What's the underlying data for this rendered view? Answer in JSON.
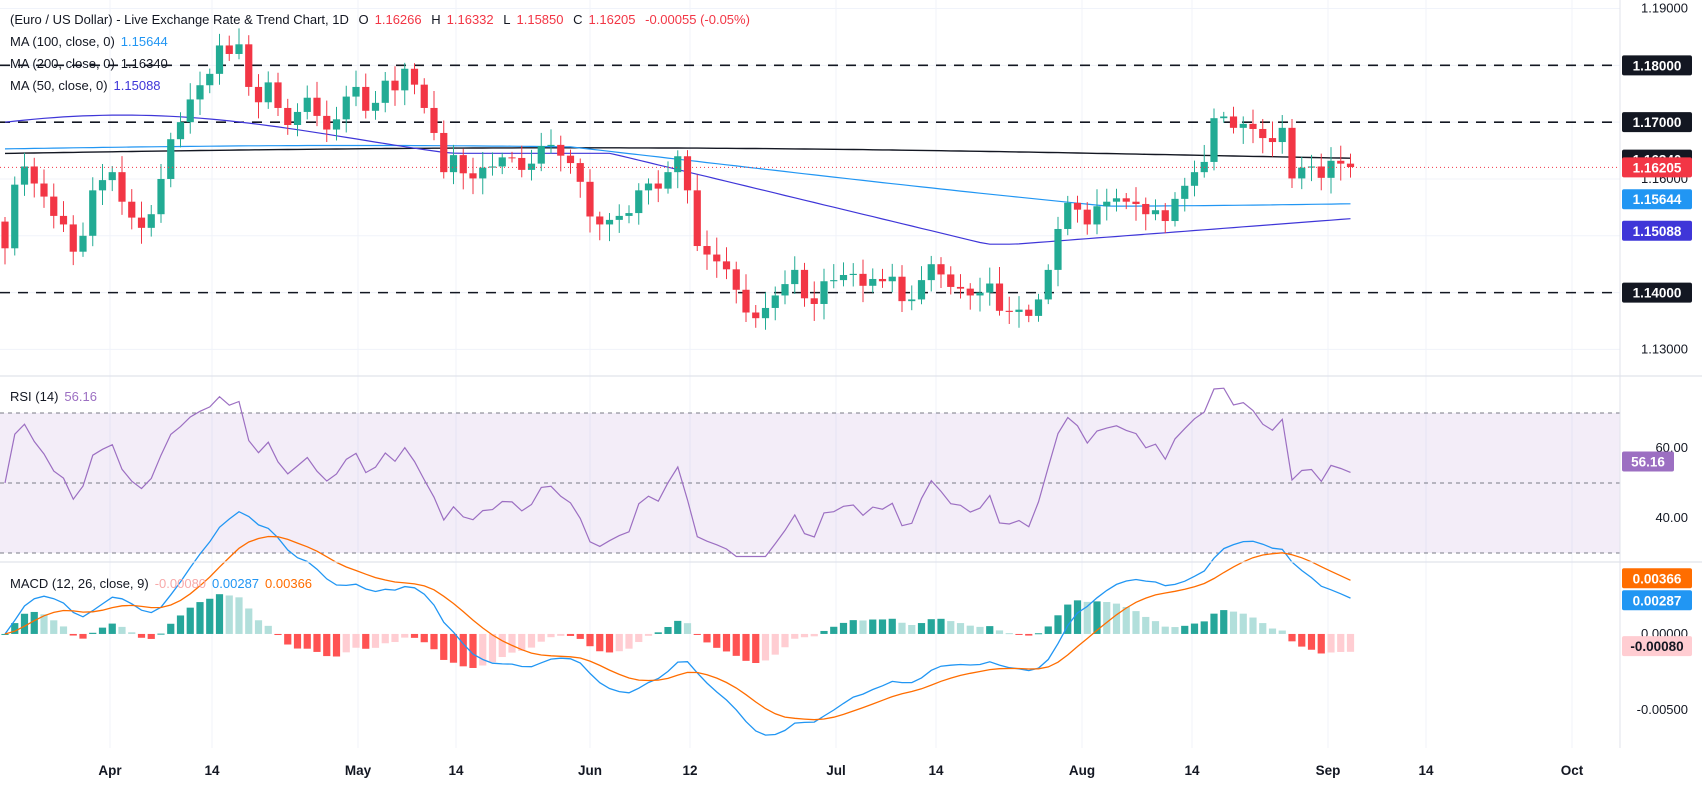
{
  "header": {
    "title": "(Euro / US Dollar) - Live Exchange Rate & Trend Chart, 1D",
    "o_label": "O",
    "o_value": "1.16266",
    "h_label": "H",
    "h_value": "1.16332",
    "l_label": "L",
    "l_value": "1.15850",
    "c_label": "C",
    "c_value": "1.16205",
    "change": "-0.00055 (-0.05%)"
  },
  "indicators": {
    "ma100": {
      "label": "MA (100, close, 0)",
      "value": "1.15644",
      "color": "#2196f3"
    },
    "ma200": {
      "label": "MA (200, close, 0)",
      "value": "1.16340",
      "color": "#131722"
    },
    "ma50": {
      "label": "MA (50, close, 0)",
      "value": "1.15088",
      "color": "#3f36d8"
    },
    "rsi": {
      "label": "RSI (14)",
      "value": "56.16",
      "color": "#9c6fc2"
    },
    "macd": {
      "label": "MACD (12, 26, close, 9)",
      "hist": "-0.00080",
      "macd": "0.00287",
      "signal": "0.00366",
      "macd_color": "#2196f3",
      "signal_color": "#ff6d00"
    }
  },
  "colors": {
    "up": "#22ab94",
    "down": "#f23645",
    "grid": "#f0f3fa"
  },
  "chart_data": {
    "type": "candlestick",
    "price_axis": {
      "ticks": [
        "1.19000",
        "1.18000",
        "1.17000",
        "1.16000",
        "1.15000",
        "1.14000",
        "1.13000"
      ],
      "range": [
        1.1255,
        1.1915
      ]
    },
    "x_ticks": [
      "Apr",
      "14",
      "May",
      "14",
      "Jun",
      "12",
      "Jul",
      "14",
      "Aug",
      "14",
      "Sep",
      "14",
      "Oct"
    ],
    "levels": [
      {
        "label": "1.18000",
        "value": 1.18
      },
      {
        "label": "1.17000",
        "value": 1.17
      },
      {
        "label": "1.14000",
        "value": 1.14
      }
    ],
    "price_labels": [
      {
        "label": "1.16340",
        "value": 1.1634,
        "bg": "#131722"
      },
      {
        "label": "1.16205",
        "value": 1.16205,
        "bg": "#f23645"
      },
      {
        "label": "1.15644",
        "value": 1.15644,
        "bg": "#2196f3"
      },
      {
        "label": "1.15088",
        "value": 1.15088,
        "bg": "#3f36d8"
      }
    ],
    "closes": [
      1.1478,
      1.159,
      1.1622,
      1.1592,
      1.1569,
      1.1535,
      1.152,
      1.1472,
      1.15,
      1.158,
      1.1598,
      1.1612,
      1.156,
      1.1532,
      1.1514,
      1.1538,
      1.16,
      1.167,
      1.17,
      1.174,
      1.1765,
      1.1785,
      1.1835,
      1.182,
      1.1837,
      1.1762,
      1.1735,
      1.177,
      1.1725,
      1.1695,
      1.1718,
      1.1743,
      1.1711,
      1.1687,
      1.1705,
      1.1745,
      1.1762,
      1.172,
      1.1734,
      1.1773,
      1.1756,
      1.1794,
      1.1766,
      1.1725,
      1.1681,
      1.1612,
      1.1642,
      1.161,
      1.1601,
      1.162,
      1.1622,
      1.1638,
      1.1637,
      1.1616,
      1.1627,
      1.1658,
      1.166,
      1.1641,
      1.1628,
      1.1595,
      1.1534,
      1.152,
      1.1528,
      1.1535,
      1.154,
      1.158,
      1.1592,
      1.1583,
      1.1612,
      1.164,
      1.158,
      1.1482,
      1.1467,
      1.1455,
      1.1441,
      1.1405,
      1.1365,
      1.1355,
      1.1373,
      1.1395,
      1.1415,
      1.144,
      1.139,
      1.138,
      1.142,
      1.1422,
      1.1431,
      1.1433,
      1.1412,
      1.1424,
      1.142,
      1.1428,
      1.1385,
      1.1388,
      1.1422,
      1.145,
      1.1432,
      1.141,
      1.1407,
      1.1395,
      1.14,
      1.1416,
      1.1368,
      1.1366,
      1.137,
      1.1359,
      1.1388,
      1.144,
      1.1512,
      1.1558,
      1.1546,
      1.152,
      1.1552,
      1.156,
      1.1566,
      1.156,
      1.1556,
      1.1538,
      1.1545,
      1.1526,
      1.1565,
      1.1588,
      1.1612,
      1.163,
      1.1707,
      1.171,
      1.169,
      1.1697,
      1.1688,
      1.1672,
      1.1665,
      1.169,
      1.1601,
      1.162,
      1.1622,
      1.1602,
      1.1632,
      1.1627,
      1.1621
    ],
    "rsi": {
      "range": [
        28,
        80
      ],
      "ticks": [
        "60.00",
        "40.00"
      ],
      "bands": [
        70,
        50,
        30
      ]
    },
    "macd": {
      "ticks": [
        "0.00000",
        "-0.00500"
      ],
      "range": [
        -0.0075,
        0.0046
      ]
    }
  }
}
